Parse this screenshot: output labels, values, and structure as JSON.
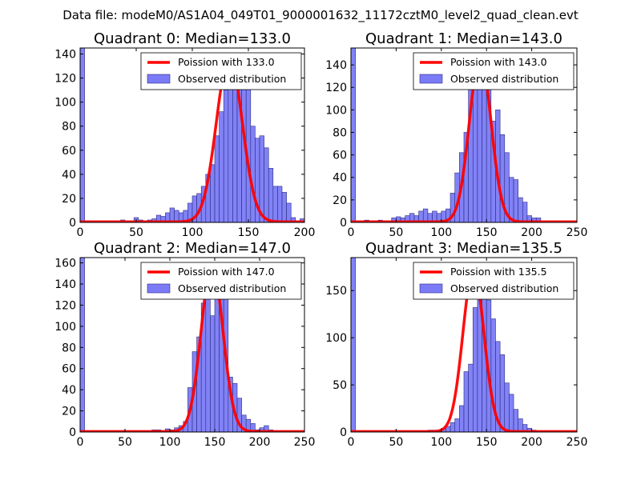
{
  "figure": {
    "suptitle": "Data file: modeM0/AS1A04_049T01_9000001632_11172cztM0_level2_quad_clean.evt"
  },
  "chart_data": [
    {
      "type": "bar",
      "title": "Quadrant 0: Median=133.0",
      "median": 133.0,
      "bin_width": 4,
      "xlim": [
        0,
        200
      ],
      "ylim": [
        0,
        145
      ],
      "xticks": [
        "0",
        "50",
        "100",
        "150",
        "200"
      ],
      "yticks": [
        "0",
        "20",
        "40",
        "60",
        "80",
        "100",
        "120",
        "140"
      ],
      "hist_x": [
        0,
        4,
        8,
        12,
        16,
        20,
        24,
        28,
        32,
        36,
        40,
        44,
        48,
        52,
        56,
        60,
        64,
        68,
        72,
        76,
        80,
        84,
        88,
        92,
        96,
        100,
        104,
        108,
        112,
        116,
        120,
        124,
        128,
        132,
        136,
        140,
        144,
        148,
        152,
        156,
        160,
        164,
        168,
        172,
        176,
        180,
        184,
        188,
        192,
        196
      ],
      "hist_values": [
        145,
        1,
        1,
        1,
        1,
        1,
        1,
        1,
        1,
        2,
        1,
        1,
        4,
        2,
        1,
        2,
        3,
        6,
        5,
        8,
        12,
        10,
        8,
        10,
        16,
        22,
        24,
        30,
        40,
        48,
        72,
        92,
        110,
        120,
        138,
        122,
        125,
        138,
        80,
        70,
        72,
        62,
        45,
        30,
        30,
        25,
        16,
        4,
        1,
        3
      ],
      "poisson_peak": 137,
      "legend": [
        "Poission with 133.0",
        "Observed distribution"
      ],
      "legend_loc": "upper right"
    },
    {
      "type": "bar",
      "title": "Quadrant 1: Median=143.0",
      "median": 143.0,
      "bin_width": 5,
      "xlim": [
        0,
        250
      ],
      "ylim": [
        0,
        155
      ],
      "xticks": [
        "0",
        "50",
        "100",
        "150",
        "200",
        "250"
      ],
      "yticks": [
        "0",
        "20",
        "40",
        "60",
        "80",
        "100",
        "120",
        "140"
      ],
      "hist_x": [
        0,
        5,
        10,
        15,
        20,
        25,
        30,
        35,
        40,
        45,
        50,
        55,
        60,
        65,
        70,
        75,
        80,
        85,
        90,
        95,
        100,
        105,
        110,
        115,
        120,
        125,
        130,
        135,
        140,
        145,
        150,
        155,
        160,
        165,
        170,
        175,
        180,
        185,
        190,
        195,
        200,
        205,
        210,
        215,
        220,
        225,
        230,
        235,
        240,
        245
      ],
      "hist_values": [
        155,
        1,
        1,
        2,
        1,
        1,
        2,
        1,
        1,
        4,
        5,
        4,
        6,
        8,
        6,
        10,
        12,
        8,
        10,
        8,
        10,
        12,
        26,
        44,
        62,
        80,
        118,
        150,
        120,
        128,
        130,
        90,
        100,
        78,
        62,
        40,
        38,
        22,
        18,
        6,
        4,
        4,
        0,
        0,
        0,
        0,
        0,
        0,
        0,
        0
      ],
      "poisson_peak": 147,
      "legend": [
        "Poission with 143.0",
        "Observed distribution"
      ],
      "legend_loc": "upper right"
    },
    {
      "type": "bar",
      "title": "Quadrant 2: Median=147.0",
      "median": 147.0,
      "bin_width": 5,
      "xlim": [
        0,
        250
      ],
      "ylim": [
        0,
        165
      ],
      "xticks": [
        "0",
        "50",
        "100",
        "150",
        "200",
        "250"
      ],
      "yticks": [
        "0",
        "20",
        "40",
        "60",
        "80",
        "100",
        "120",
        "140",
        "160"
      ],
      "hist_x": [
        0,
        5,
        10,
        15,
        20,
        25,
        30,
        35,
        40,
        45,
        50,
        55,
        60,
        65,
        70,
        75,
        80,
        85,
        90,
        95,
        100,
        105,
        110,
        115,
        120,
        125,
        130,
        135,
        140,
        145,
        150,
        155,
        160,
        165,
        170,
        175,
        180,
        185,
        190,
        195,
        200,
        205,
        210,
        215,
        220,
        225,
        230,
        235,
        240,
        245
      ],
      "hist_values": [
        165,
        1,
        1,
        1,
        1,
        1,
        1,
        1,
        1,
        1,
        1,
        1,
        1,
        1,
        1,
        1,
        2,
        2,
        1,
        3,
        2,
        4,
        6,
        10,
        42,
        76,
        90,
        122,
        134,
        110,
        150,
        152,
        130,
        52,
        46,
        32,
        16,
        12,
        8,
        2,
        4,
        6,
        2,
        0,
        0,
        0,
        0,
        0,
        0,
        0
      ],
      "poisson_peak": 158,
      "legend": [
        "Poission with 147.0",
        "Observed distribution"
      ],
      "legend_loc": "upper right"
    },
    {
      "type": "bar",
      "title": "Quadrant 3: Median=135.5",
      "median": 135.5,
      "bin_width": 5,
      "xlim": [
        0,
        250
      ],
      "ylim": [
        0,
        185
      ],
      "xticks": [
        "0",
        "50",
        "100",
        "150",
        "200",
        "250"
      ],
      "yticks": [
        "0",
        "50",
        "100",
        "150"
      ],
      "hist_x": [
        0,
        5,
        10,
        15,
        20,
        25,
        30,
        35,
        40,
        45,
        50,
        55,
        60,
        65,
        70,
        75,
        80,
        85,
        90,
        95,
        100,
        105,
        110,
        115,
        120,
        125,
        130,
        135,
        140,
        145,
        150,
        155,
        160,
        165,
        170,
        175,
        180,
        185,
        190,
        195,
        200,
        205,
        210,
        215,
        220,
        225,
        230,
        235,
        240,
        245
      ],
      "hist_values": [
        185,
        1,
        1,
        1,
        1,
        1,
        1,
        1,
        1,
        1,
        1,
        1,
        1,
        1,
        1,
        1,
        1,
        2,
        2,
        2,
        4,
        6,
        10,
        14,
        28,
        64,
        72,
        132,
        140,
        170,
        140,
        120,
        96,
        82,
        52,
        40,
        24,
        14,
        8,
        4,
        2,
        0,
        0,
        0,
        0,
        0,
        0,
        0,
        0,
        0
      ],
      "poisson_peak": 172,
      "legend": [
        "Poission with 135.5",
        "Observed distribution"
      ],
      "legend_loc": "upper right"
    }
  ]
}
